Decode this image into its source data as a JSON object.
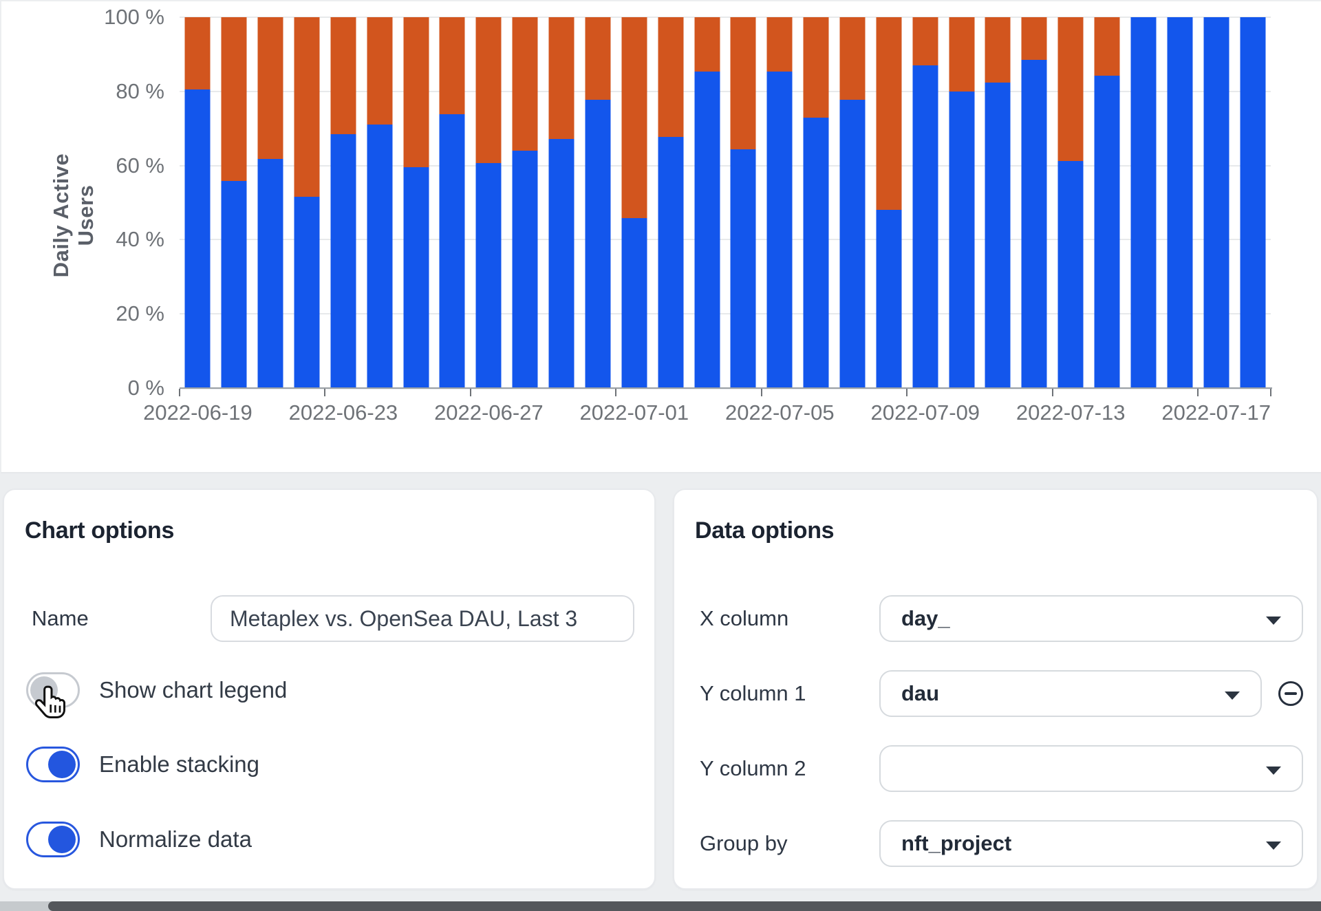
{
  "chart_data": {
    "type": "bar",
    "stacked": true,
    "normalized": true,
    "ylabel": "Daily Active Users",
    "ylim": [
      0,
      100
    ],
    "grid": true,
    "legend_visible": false,
    "y_tick_labels": [
      "100 %",
      "80 %",
      "60 %",
      "40 %",
      "20 %",
      "0 %"
    ],
    "y_tick_values": [
      100,
      80,
      60,
      40,
      20,
      0
    ],
    "x": [
      "2022-06-19",
      "2022-06-20",
      "2022-06-21",
      "2022-06-22",
      "2022-06-23",
      "2022-06-24",
      "2022-06-25",
      "2022-06-26",
      "2022-06-27",
      "2022-06-28",
      "2022-06-29",
      "2022-06-30",
      "2022-07-01",
      "2022-07-02",
      "2022-07-03",
      "2022-07-04",
      "2022-07-05",
      "2022-07-06",
      "2022-07-07",
      "2022-07-08",
      "2022-07-09",
      "2022-07-10",
      "2022-07-11",
      "2022-07-12",
      "2022-07-13",
      "2022-07-14",
      "2022-07-15",
      "2022-07-16",
      "2022-07-17",
      "2022-07-18"
    ],
    "x_tick_slot_indexes": [
      0,
      4,
      8,
      12,
      16,
      20,
      24,
      28
    ],
    "x_tick_labels": [
      "2022-06-19",
      "2022-06-23",
      "2022-06-27",
      "2022-07-01",
      "2022-07-05",
      "2022-07-09",
      "2022-07-13",
      "2022-07-17"
    ],
    "x_axis_tick_boundaries": [
      0,
      4,
      8,
      12,
      16,
      20,
      24,
      28,
      30
    ],
    "series": [
      {
        "name": "series-1-blue",
        "color": "#1356ec",
        "values": [
          80.6,
          55.8,
          61.7,
          51.6,
          68.4,
          71.1,
          59.5,
          73.9,
          60.7,
          64.0,
          67.2,
          77.8,
          45.9,
          67.7,
          85.3,
          64.3,
          85.4,
          73.0,
          77.8,
          48.0,
          87.0,
          80.0,
          82.4,
          88.5,
          61.2,
          84.3,
          100,
          100,
          100,
          100
        ]
      },
      {
        "name": "series-2-orange",
        "color": "#d2551e",
        "values": [
          19.4,
          44.2,
          38.3,
          48.4,
          31.6,
          28.9,
          40.5,
          26.1,
          39.3,
          36.0,
          32.8,
          22.2,
          54.1,
          32.3,
          14.7,
          35.7,
          14.6,
          27.0,
          22.2,
          52.0,
          13.0,
          20.0,
          17.6,
          11.5,
          38.8,
          15.7,
          0,
          0,
          0,
          0
        ]
      }
    ]
  },
  "chart_options": {
    "title": "Chart options",
    "name_label": "Name",
    "name_value": "Metaplex vs. OpenSea DAU, Last 3",
    "toggles": [
      {
        "label": "Show chart legend",
        "state": false
      },
      {
        "label": "Enable stacking",
        "state": true
      },
      {
        "label": "Normalize data",
        "state": true
      }
    ]
  },
  "data_options": {
    "title": "Data options",
    "rows": [
      {
        "label": "X column",
        "value": "day_",
        "removable": false
      },
      {
        "label": "Y column 1",
        "value": "dau",
        "removable": true
      },
      {
        "label": "Y column 2",
        "value": "",
        "removable": false
      },
      {
        "label": "Group by",
        "value": "nft_project",
        "removable": false
      }
    ]
  },
  "colors": {
    "bar_blue": "#1356ec",
    "bar_orange": "#d2551e",
    "toggle_on": "#2857de",
    "section_bg": "#eceef0",
    "axis_text": "#6e7277",
    "scrollbar_thumb": "#54575b"
  }
}
